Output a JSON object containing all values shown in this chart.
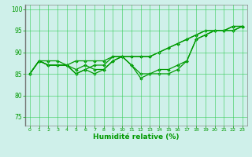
{
  "xlabel": "Humidité relative (%)",
  "bg_color": "#cff0ea",
  "grid_color": "#33cc55",
  "line_color": "#009900",
  "xlim": [
    -0.5,
    23.5
  ],
  "ylim": [
    73,
    101
  ],
  "yticks": [
    75,
    80,
    85,
    90,
    95,
    100
  ],
  "xticks": [
    0,
    1,
    2,
    3,
    4,
    5,
    6,
    7,
    8,
    9,
    10,
    11,
    12,
    13,
    14,
    15,
    16,
    17,
    18,
    19,
    20,
    21,
    22,
    23
  ],
  "series": [
    [
      85,
      88,
      88,
      88,
      87,
      88,
      88,
      88,
      88,
      89,
      89,
      89,
      89,
      89,
      90,
      91,
      92,
      93,
      94,
      95,
      95,
      95,
      96,
      96
    ],
    [
      85,
      88,
      87,
      87,
      87,
      86,
      87,
      86,
      86,
      88,
      89,
      89,
      89,
      89,
      90,
      91,
      92,
      93,
      94,
      95,
      95,
      95,
      96,
      96
    ],
    [
      85,
      88,
      87,
      87,
      87,
      85,
      86,
      85,
      86,
      88,
      89,
      87,
      85,
      85,
      86,
      86,
      87,
      88,
      93,
      94,
      95,
      95,
      95,
      96
    ],
    [
      85,
      88,
      87,
      87,
      87,
      85,
      86,
      87,
      87,
      89,
      89,
      87,
      84,
      85,
      85,
      85,
      86,
      88,
      93,
      94,
      95,
      95,
      95,
      96
    ]
  ]
}
